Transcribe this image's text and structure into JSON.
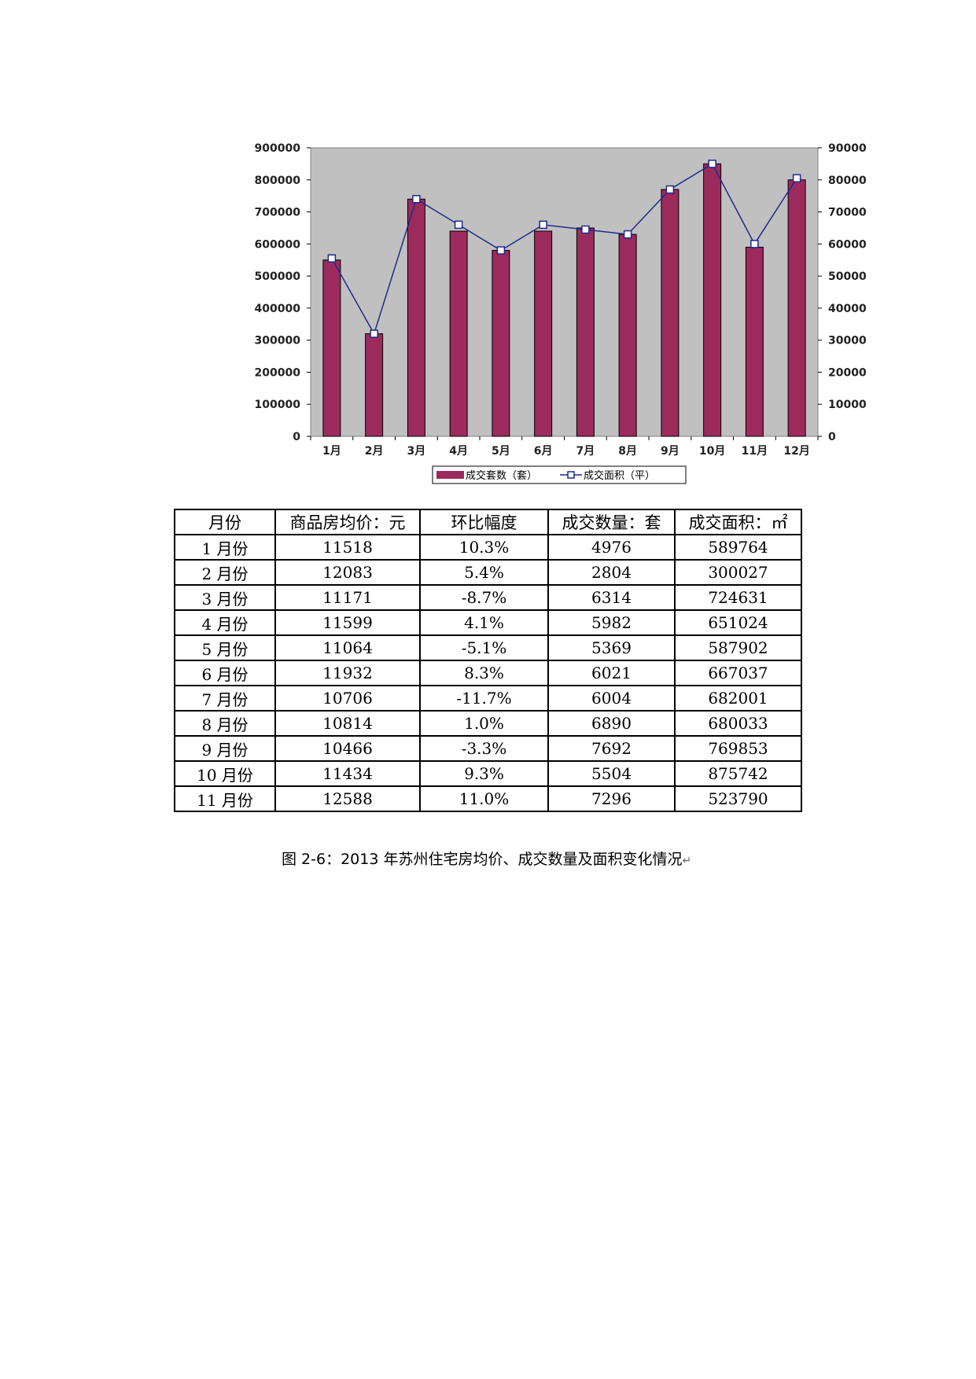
{
  "chart_data": {
    "type": "bar",
    "categories": [
      "1月",
      "2月",
      "3月",
      "4月",
      "5月",
      "6月",
      "7月",
      "8月",
      "9月",
      "10月",
      "11月",
      "12月"
    ],
    "series": [
      {
        "name": "成交套数（套）",
        "type": "bar",
        "axis": "left",
        "color": "#9b2b5c",
        "values": [
          550000,
          320000,
          740000,
          640000,
          580000,
          640000,
          650000,
          630000,
          770000,
          850000,
          590000,
          800000
        ]
      },
      {
        "name": "成交面积（平）",
        "type": "line",
        "axis": "right",
        "color": "#1f2a8a",
        "values": [
          55500,
          32000,
          74000,
          66000,
          58000,
          66000,
          64500,
          63000,
          77000,
          85000,
          60000,
          80500
        ]
      }
    ],
    "ylim_left": [
      0,
      900000
    ],
    "ylim_right": [
      0,
      90000
    ],
    "yticks_left": [
      "0",
      "100000",
      "200000",
      "300000",
      "400000",
      "500000",
      "600000",
      "700000",
      "800000",
      "900000"
    ],
    "yticks_right": [
      "0",
      "10000",
      "20000",
      "30000",
      "40000",
      "50000",
      "60000",
      "70000",
      "80000",
      "90000"
    ],
    "plot_background": "#c0c0c0",
    "legend_position": "bottom"
  },
  "table": {
    "headers": [
      "月份",
      "商品房均价：元",
      "环比幅度",
      "成交数量：套",
      "成交面积：㎡"
    ],
    "rows": [
      [
        "1 月份",
        "11518",
        "10.3%",
        "4976",
        "589764"
      ],
      [
        "2 月份",
        "12083",
        "5.4%",
        "2804",
        "300027"
      ],
      [
        "3 月份",
        "11171",
        "-8.7%",
        "6314",
        "724631"
      ],
      [
        "4 月份",
        "11599",
        "4.1%",
        "5982",
        "651024"
      ],
      [
        "5 月份",
        "11064",
        "-5.1%",
        "5369",
        "587902"
      ],
      [
        "6 月份",
        "11932",
        "8.3%",
        "6021",
        "667037"
      ],
      [
        "7 月份",
        "10706",
        "-11.7%",
        "6004",
        "682001"
      ],
      [
        "8 月份",
        "10814",
        "1.0%",
        "6890",
        "680033"
      ],
      [
        "9 月份",
        "10466",
        "-3.3%",
        "7692",
        "769853"
      ],
      [
        "10 月份",
        "11434",
        "9.3%",
        "5504",
        "875742"
      ],
      [
        "11 月份",
        "12588",
        "11.0%",
        "7296",
        "523790"
      ]
    ]
  },
  "caption": "图 2-6：2013 年苏州住宅房均价、成交数量及面积变化情况",
  "caption_mark": "↵"
}
